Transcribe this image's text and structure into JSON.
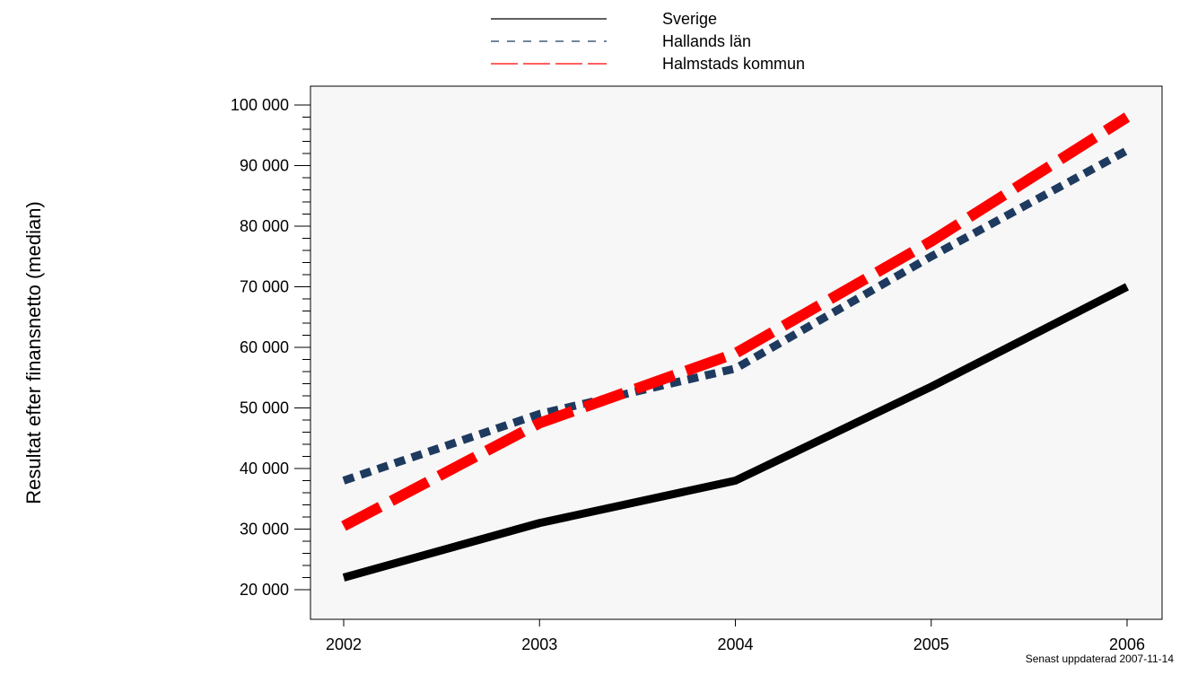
{
  "chart_data": {
    "type": "line",
    "x": [
      "2002",
      "2003",
      "2004",
      "2005",
      "2006"
    ],
    "ylabel": "Resultat efter finansnetto (median)",
    "xlabel": "",
    "ylim": [
      18000,
      102000
    ],
    "yticks": [
      20000,
      30000,
      40000,
      50000,
      60000,
      70000,
      80000,
      90000,
      100000
    ],
    "ytick_labels": [
      "20 000",
      "30 000",
      "40 000",
      "50 000",
      "60 000",
      "70 000",
      "80 000",
      "90 000",
      "100 000"
    ],
    "grid": false,
    "legend_position": "top-center",
    "series": [
      {
        "name": "Sverige",
        "values": [
          22000,
          31000,
          38000,
          53500,
          70000
        ],
        "color": "#000000",
        "style": "solid"
      },
      {
        "name": "Hallands län",
        "values": [
          38000,
          49000,
          56500,
          75000,
          92500
        ],
        "color": "#1f3a5f",
        "style": "dotted"
      },
      {
        "name": "Halmstads kommun",
        "values": [
          30500,
          47500,
          59000,
          77500,
          98000
        ],
        "color": "#ff0000",
        "style": "dashed"
      }
    ]
  },
  "footer": "Senast uppdaterad 2007-11-14"
}
